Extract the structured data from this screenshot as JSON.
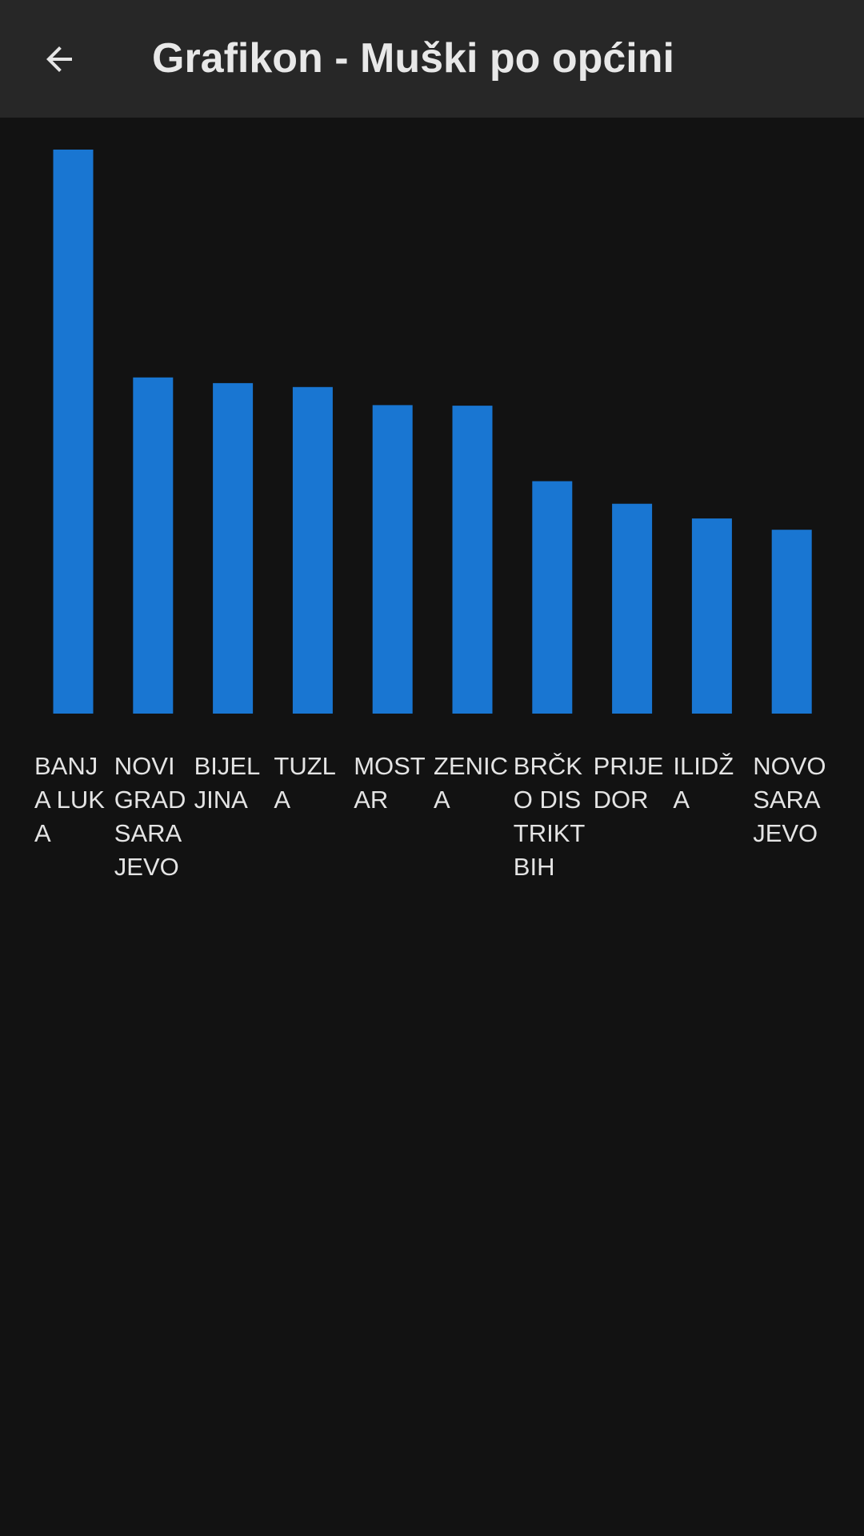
{
  "header": {
    "title": "Grafikon - Muški po općini",
    "back_icon": "arrow-left-icon"
  },
  "colors": {
    "bar": "#1976D2",
    "background": "#121212",
    "appbar": "#272727",
    "text": "#E6E6E6"
  },
  "chart_data": {
    "type": "bar",
    "title": "",
    "xlabel": "",
    "ylabel": "",
    "categories": [
      "BANJA LUKA",
      "NOVI GRAD SARAJEVO",
      "BIJELJINA",
      "TUZLA",
      "MOSTAR",
      "ZENICA",
      "BRČKO DISTRIKT BIH",
      "PRIJEDOR",
      "ILIDŽA",
      "NOVO SARAJEVO"
    ],
    "values": [
      100,
      59.6,
      58.6,
      57.9,
      54.7,
      54.6,
      41.2,
      37.2,
      34.6,
      32.6
    ],
    "ylim": [
      0,
      100
    ],
    "grid": false,
    "legend": "none"
  }
}
